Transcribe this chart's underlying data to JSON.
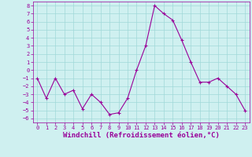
{
  "x": [
    0,
    1,
    2,
    3,
    4,
    5,
    6,
    7,
    8,
    9,
    10,
    11,
    12,
    13,
    14,
    15,
    16,
    17,
    18,
    19,
    20,
    21,
    22,
    23
  ],
  "y": [
    -1,
    -3.5,
    -1,
    -3,
    -2.5,
    -4.8,
    -3,
    -4,
    -5.5,
    -5.3,
    -3.5,
    0,
    3,
    8,
    7,
    6.2,
    3.7,
    1,
    -1.5,
    -1.5,
    -1,
    -2,
    -3,
    -5
  ],
  "line_color": "#990099",
  "marker_color": "#990099",
  "bg_color": "#cff0f0",
  "grid_color": "#a0d8d8",
  "xlabel": "Windchill (Refroidissement éolien,°C)",
  "xlabel_color": "#990099",
  "ylim": [
    -6.5,
    8.5
  ],
  "xlim": [
    -0.5,
    23.5
  ],
  "yticks": [
    -6,
    -5,
    -4,
    -3,
    -2,
    -1,
    0,
    1,
    2,
    3,
    4,
    5,
    6,
    7,
    8
  ],
  "xticks": [
    0,
    1,
    2,
    3,
    4,
    5,
    6,
    7,
    8,
    9,
    10,
    11,
    12,
    13,
    14,
    15,
    16,
    17,
    18,
    19,
    20,
    21,
    22,
    23
  ],
  "tick_color": "#990099",
  "spine_color": "#990099",
  "marker_size": 3,
  "linewidth": 0.8,
  "tick_fontsize": 5,
  "xlabel_fontsize": 6.5
}
